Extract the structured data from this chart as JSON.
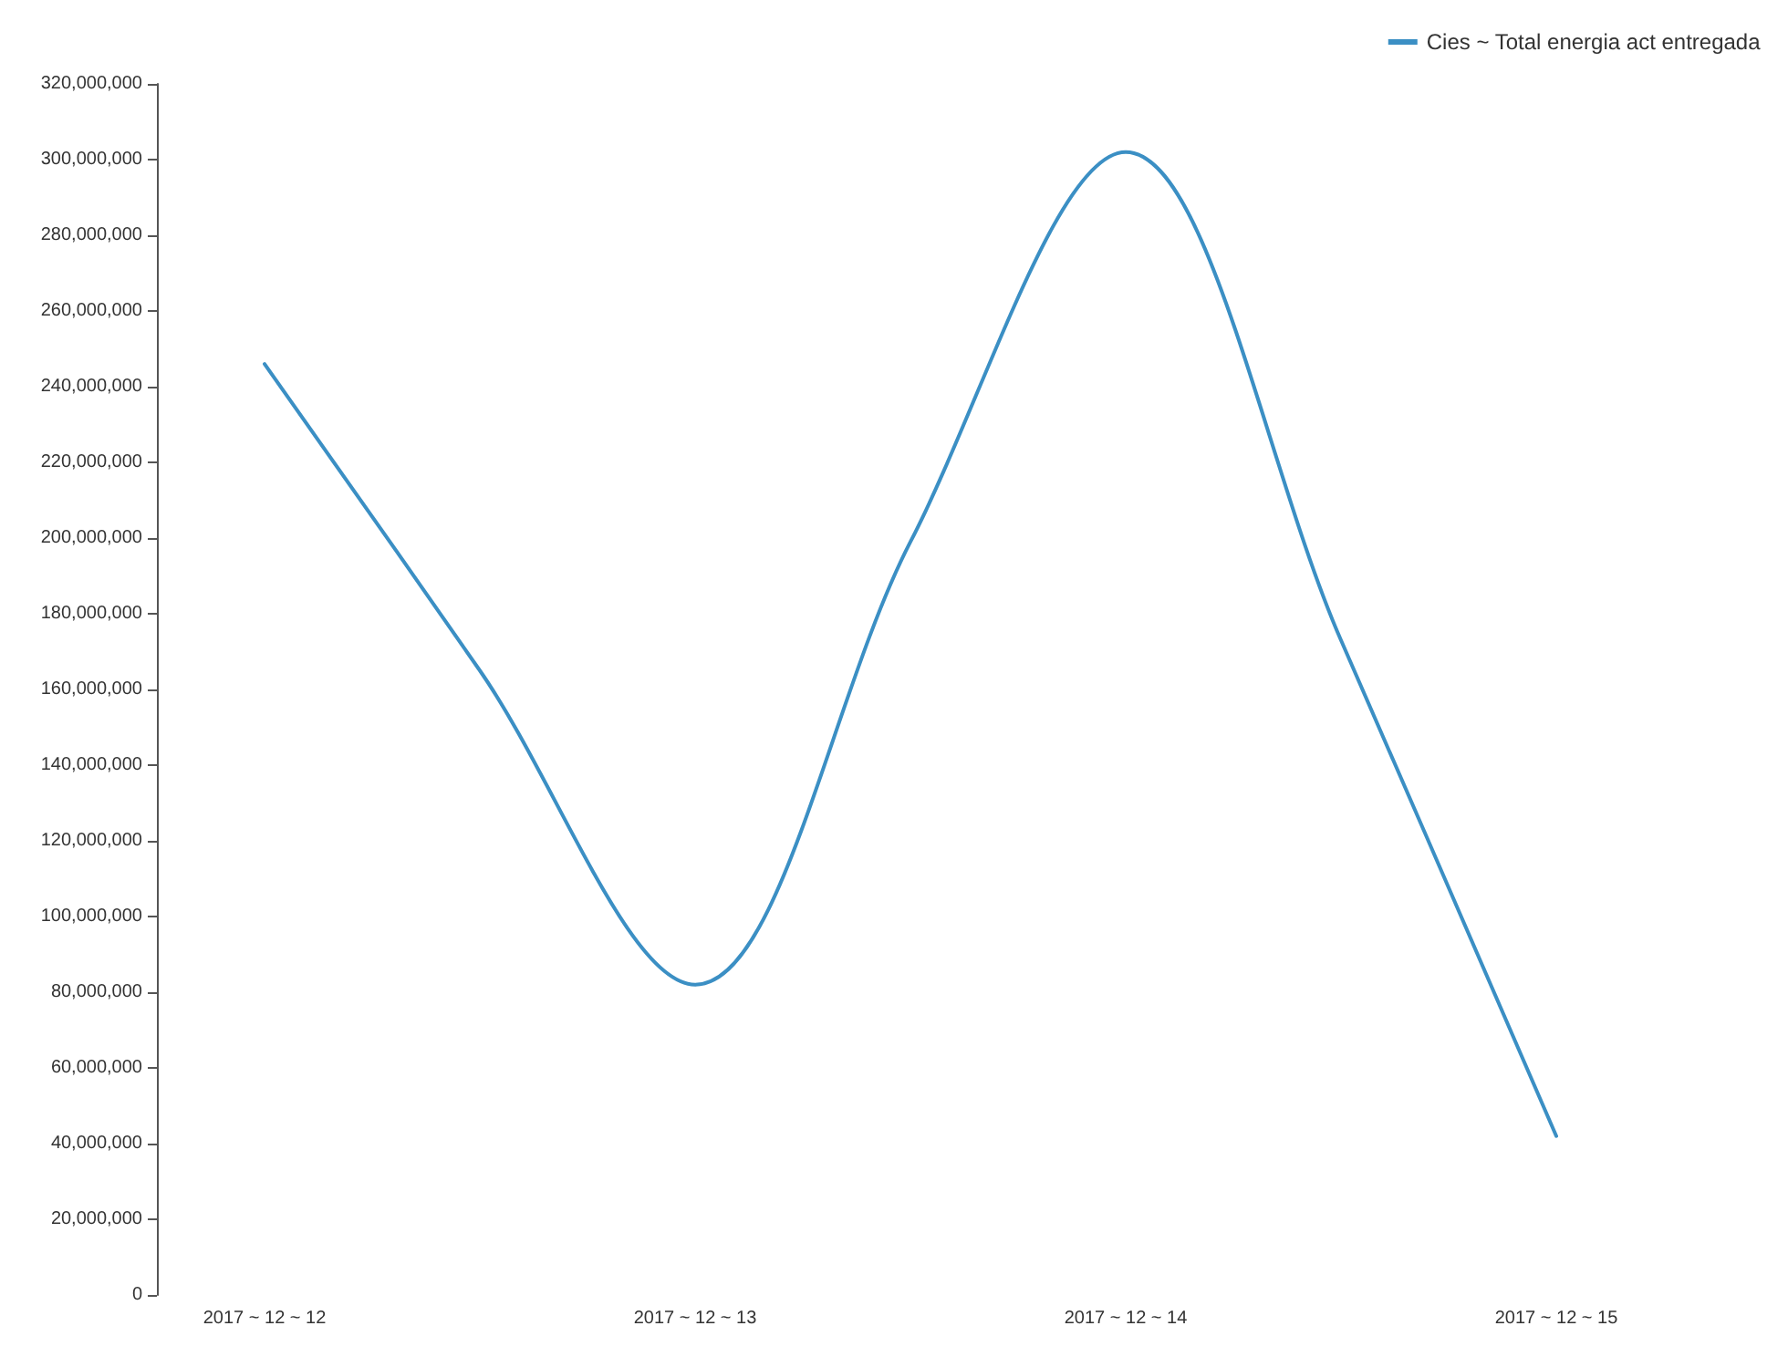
{
  "chart_data": {
    "type": "line",
    "categories": [
      "2017 ~ 12 ~ 12",
      null,
      "2017 ~ 12 ~ 13",
      null,
      "2017 ~ 12 ~ 14",
      null,
      "2017 ~ 12 ~ 15"
    ],
    "series": [
      {
        "name": "Cies ~ Total energia act entregada",
        "color": "#3b8fc4",
        "values": [
          246000000,
          165000000,
          82000000,
          199000000,
          302000000,
          173000000,
          42000000
        ]
      }
    ],
    "ylim": [
      0,
      320000000
    ],
    "yticks": [
      0,
      {
        "value": 20000000,
        "label": "20,000,000"
      },
      {
        "value": 40000000,
        "label": "40,000,000"
      },
      {
        "value": 60000000,
        "label": "60,000,000"
      },
      {
        "value": 80000000,
        "label": "80,000,000"
      },
      {
        "value": 100000000,
        "label": "100,000,000"
      },
      {
        "value": 120000000,
        "label": "120,000,000"
      },
      {
        "value": 140000000,
        "label": "140,000,000"
      },
      {
        "value": 160000000,
        "label": "160,000,000"
      },
      {
        "value": 180000000,
        "label": "180,000,000"
      },
      {
        "value": 200000000,
        "label": "200,000,000"
      },
      {
        "value": 220000000,
        "label": "220,000,000"
      },
      {
        "value": 240000000,
        "label": "240,000,000"
      },
      {
        "value": 260000000,
        "label": "260,000,000"
      },
      {
        "value": 280000000,
        "label": "280,000,000"
      },
      {
        "value": 300000000,
        "label": "300,000,000"
      },
      {
        "value": 320000000,
        "label": "320,000,000"
      }
    ],
    "grid": false,
    "legend": "top right",
    "marker": "none",
    "line_style": "solid"
  }
}
